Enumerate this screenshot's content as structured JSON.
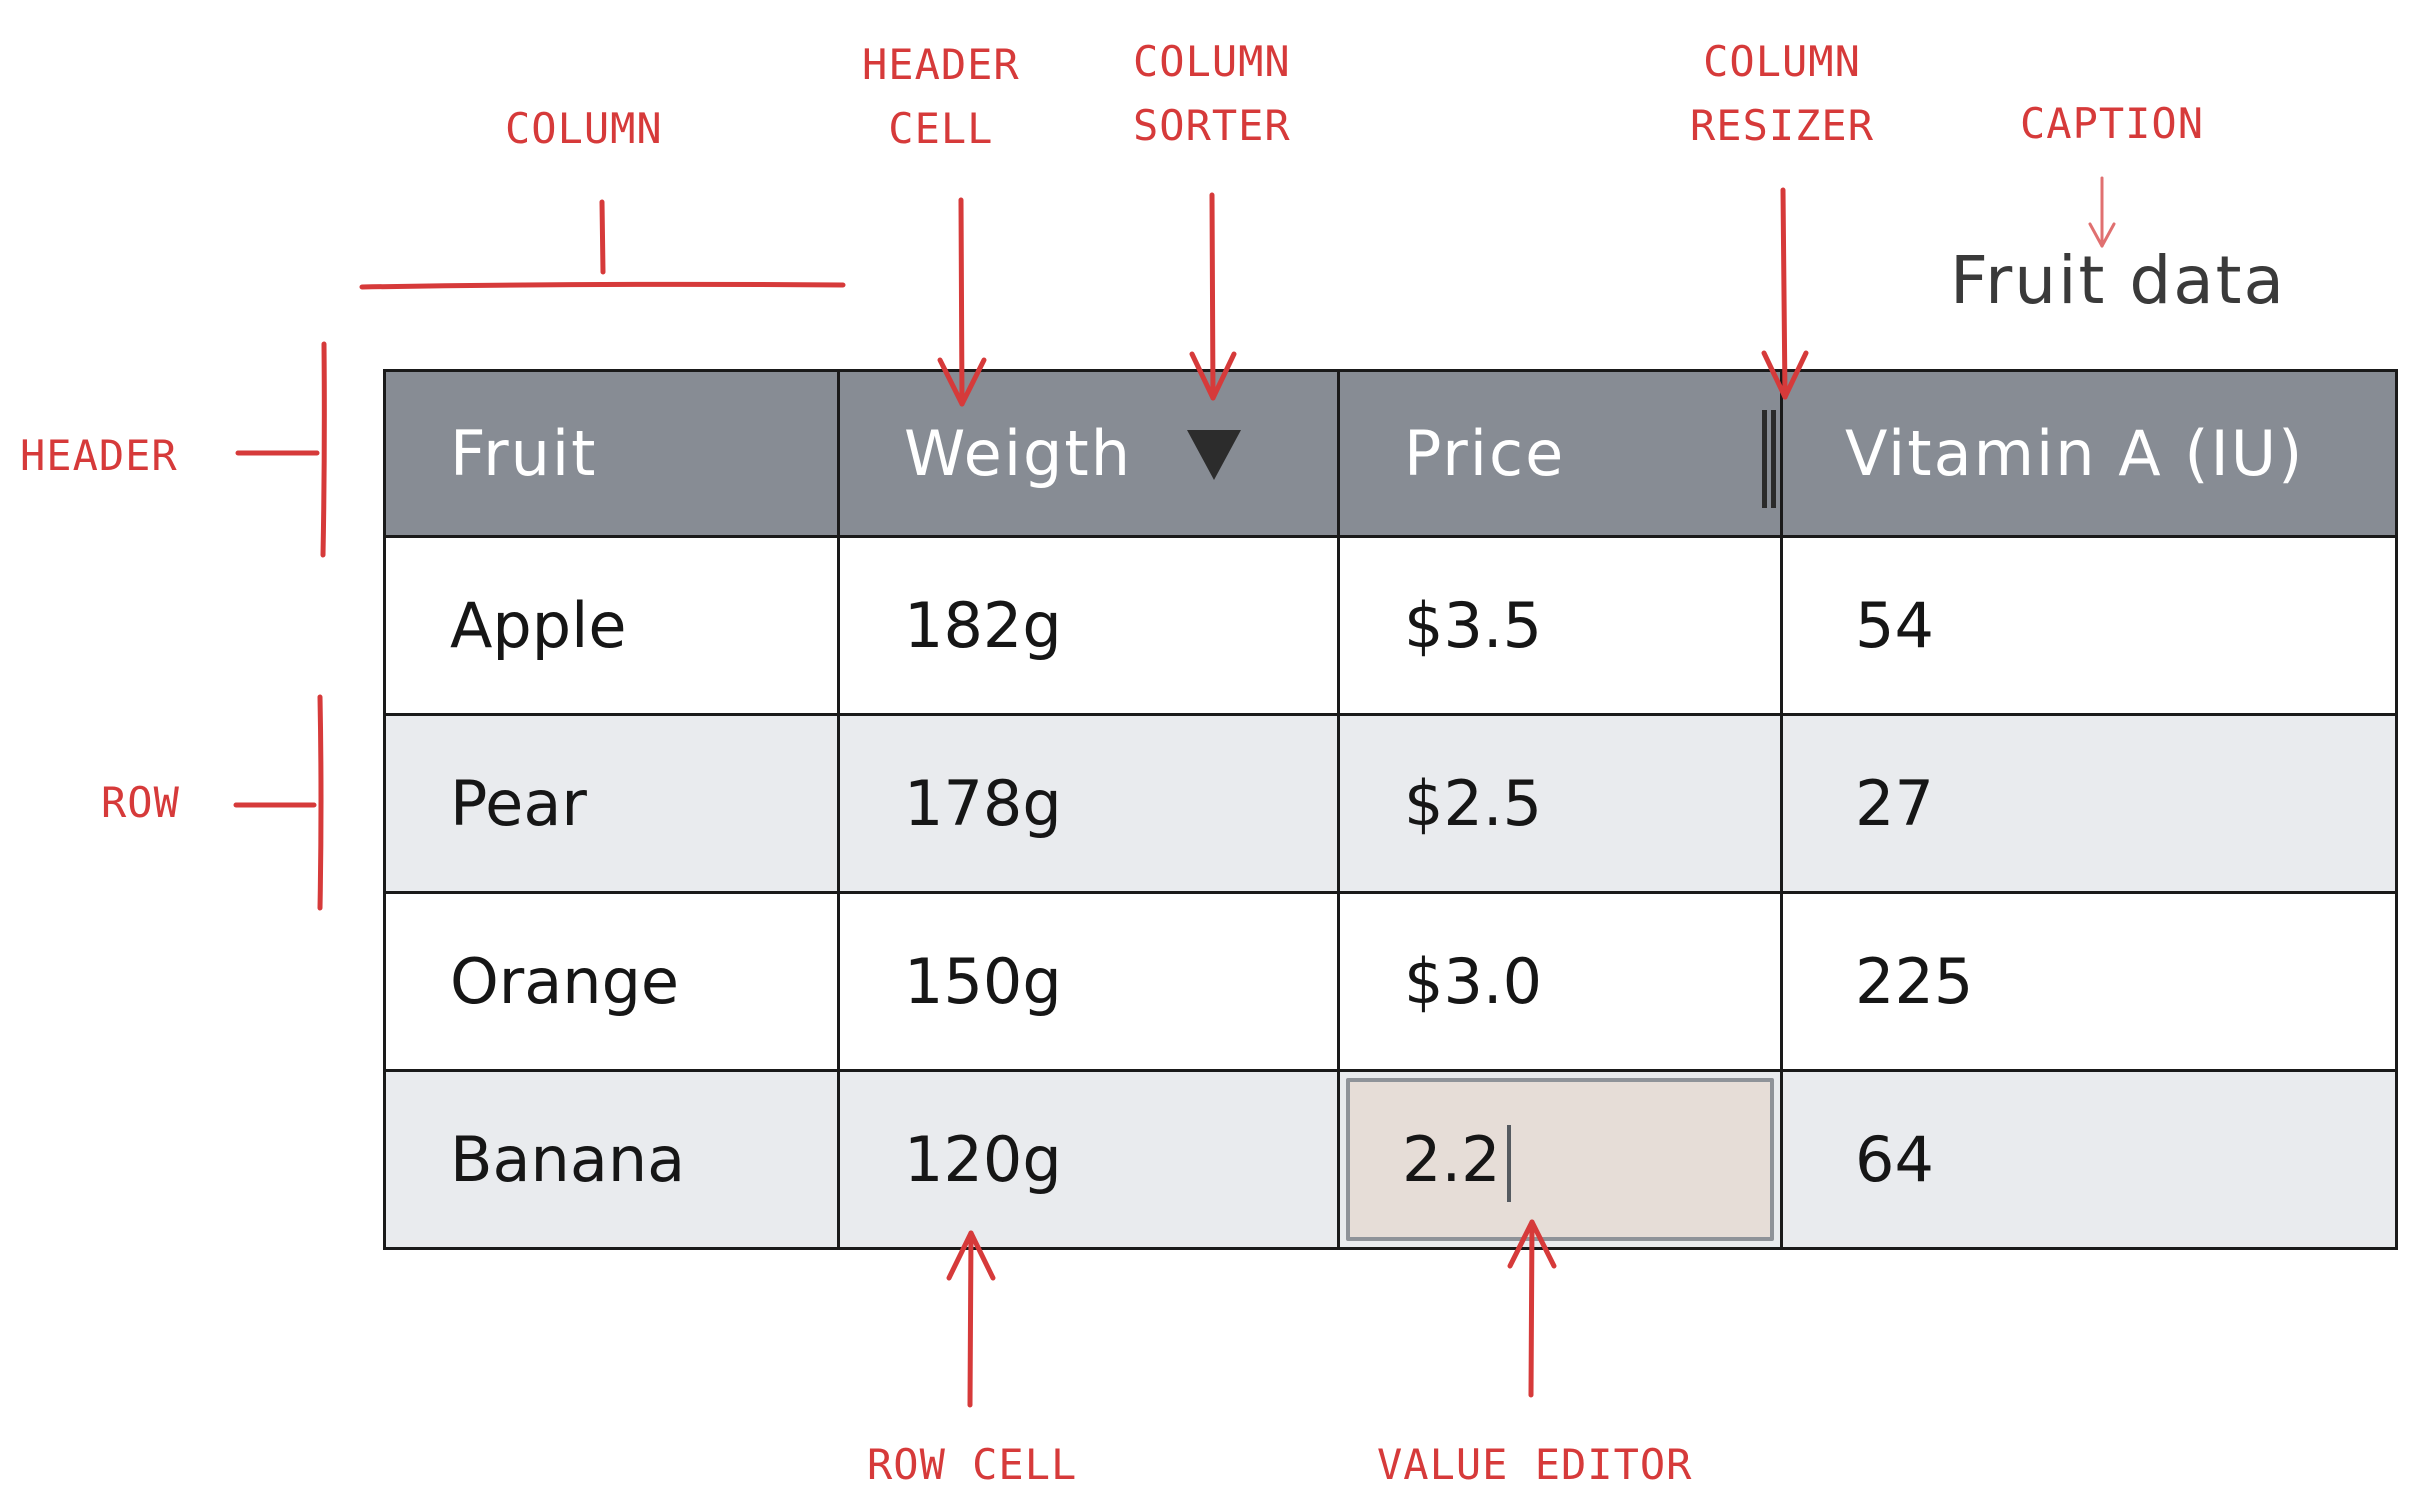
{
  "annotations": {
    "column": "COLUMN",
    "header_cell": [
      "HEADER",
      "CELL"
    ],
    "column_sorter": [
      "COLUMN",
      "SORTER"
    ],
    "column_resizer": [
      "COLUMN",
      "RESIZER"
    ],
    "caption": "CAPTION",
    "header": "HEADER",
    "row": "ROW",
    "row_cell": "ROW CELL",
    "value_editor": "VALUE EDITOR"
  },
  "caption": "Fruit data",
  "table": {
    "columns": [
      "Fruit",
      "Weigth",
      "Price",
      "Vitamin A (IU)"
    ],
    "rows": [
      [
        "Apple",
        "182g",
        "$3.5",
        "54"
      ],
      [
        "Pear",
        "178g",
        "$2.5",
        "27"
      ],
      [
        "Orange",
        "150g",
        "$3.0",
        "225"
      ],
      [
        "Banana",
        "120g",
        "2.2",
        "64"
      ]
    ]
  },
  "colors": {
    "annotation": "#d63a3a",
    "header_background": "#878c94",
    "alternate_row_background": "#e9ebee",
    "editor_background": "#e6ddd7"
  }
}
